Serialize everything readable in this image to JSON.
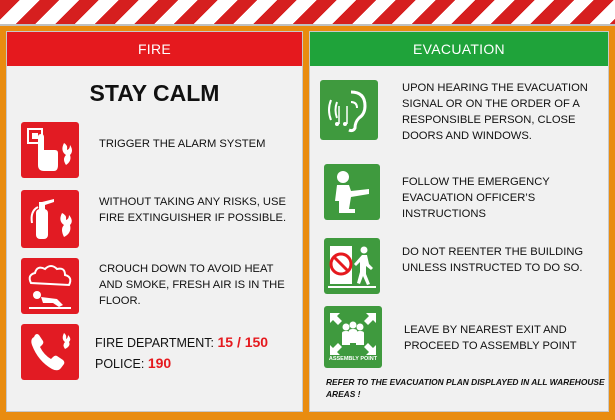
{
  "fire": {
    "header": "FIRE",
    "title": "STAY CALM",
    "items": [
      {
        "icon": "fire-alarm-icon",
        "text": "TRIGGER THE ALARM SYSTEM"
      },
      {
        "icon": "fire-extinguisher-icon",
        "text": "WITHOUT TAKING ANY RISKS, USE FIRE EXTINGUISHER IF POSSIBLE."
      },
      {
        "icon": "crouch-smoke-icon",
        "text": "CROUCH DOWN TO AVOID HEAT AND SMOKE, FRESH AIR IS IN THE FLOOR."
      }
    ],
    "contacts": {
      "icon": "emergency-phone-icon",
      "fire_label": "FIRE DEPARTMENT:",
      "fire_number": "15 / 150",
      "police_label": "POLICE:",
      "police_number": "190"
    }
  },
  "evacuation": {
    "header": "EVACUATION",
    "items": [
      {
        "icon": "hearing-signal-icon",
        "text": "UPON HEARING THE EVACUATION SIGNAL OR ON THE ORDER OF A RESPONSIBLE PERSON, CLOSE DOORS AND WINDOWS."
      },
      {
        "icon": "pointing-officer-icon",
        "text": "FOLLOW THE EMERGENCY EVACUATION OFFICER’S INSTRUCTIONS"
      },
      {
        "icon": "no-reentry-icon",
        "text": "DO NOT REENTER THE BUILDING UNLESS INSTRUCTED TO DO SO."
      },
      {
        "icon": "assembly-point-icon",
        "text": "LEAVE BY NEAREST EXIT AND PROCEED TO ASSEMBLY POINT",
        "icon_label": "ASSEMBLY POINT"
      }
    ],
    "note": "REFER TO THE EVACUATION PLAN DISPLAYED IN ALL WAREHOUSE AREAS !"
  },
  "colors": {
    "fire_red": "#e5191e",
    "evac_green": "#1fa33a",
    "border_orange": "#e98c10"
  }
}
